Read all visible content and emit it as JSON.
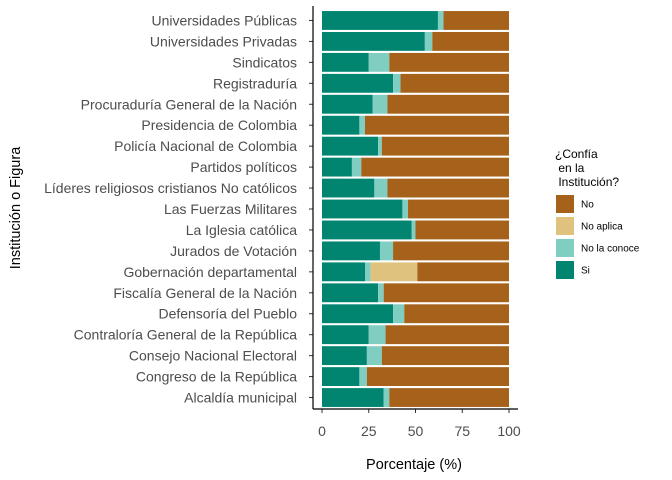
{
  "chart_data": {
    "type": "bar",
    "orientation": "horizontal",
    "stacked": true,
    "xlabel": "Porcentaje (%)",
    "ylabel": "Institución o Figura",
    "xlim": [
      0,
      100
    ],
    "xticks": [
      0,
      25,
      50,
      75,
      100
    ],
    "grid": false,
    "legend_position": "right",
    "legend_title": [
      "¿Confía",
      " en la",
      " Institución?"
    ],
    "categories": [
      "Universidades Públicas",
      "Universidades Privadas",
      "Sindicatos",
      "Registraduría",
      "Procuraduría General de la Nación",
      "Presidencia de Colombia",
      "Policía Nacional de Colombia",
      "Partidos políticos",
      "Líderes religiosos cristianos No católicos",
      "Las Fuerzas Militares",
      "La Iglesia católica",
      "Jurados de Votación",
      "Gobernación departamental",
      "Fiscalía General de la Nación",
      "Defensoría del Pueblo",
      "Contraloría General de la República",
      "Consejo Nacional Electoral",
      "Congreso de la República",
      "Alcaldía municipal"
    ],
    "series": [
      {
        "name": "Si",
        "color": "#018571",
        "values": [
          62,
          55,
          25,
          38,
          27,
          20,
          30,
          16,
          28,
          43,
          48,
          31,
          23,
          30,
          38,
          25,
          24,
          20,
          33
        ]
      },
      {
        "name": "No la conoce",
        "color": "#80cdc1",
        "values": [
          3,
          4,
          11,
          4,
          8,
          3,
          2,
          5,
          7,
          3,
          2,
          7,
          3,
          3,
          6,
          9,
          8,
          4,
          3
        ]
      },
      {
        "name": "No aplica",
        "color": "#dfc27d",
        "values": [
          0,
          0,
          0,
          0,
          0,
          0,
          0,
          0,
          0,
          0,
          0,
          0,
          25,
          0,
          0,
          0,
          0,
          0,
          0
        ]
      },
      {
        "name": "No",
        "color": "#a6611a",
        "values": [
          35,
          41,
          64,
          58,
          65,
          77,
          68,
          79,
          65,
          54,
          50,
          62,
          49,
          67,
          56,
          66,
          68,
          76,
          64
        ]
      }
    ],
    "legend_order": [
      "No",
      "No aplica",
      "No la conoce",
      "Si"
    ]
  }
}
